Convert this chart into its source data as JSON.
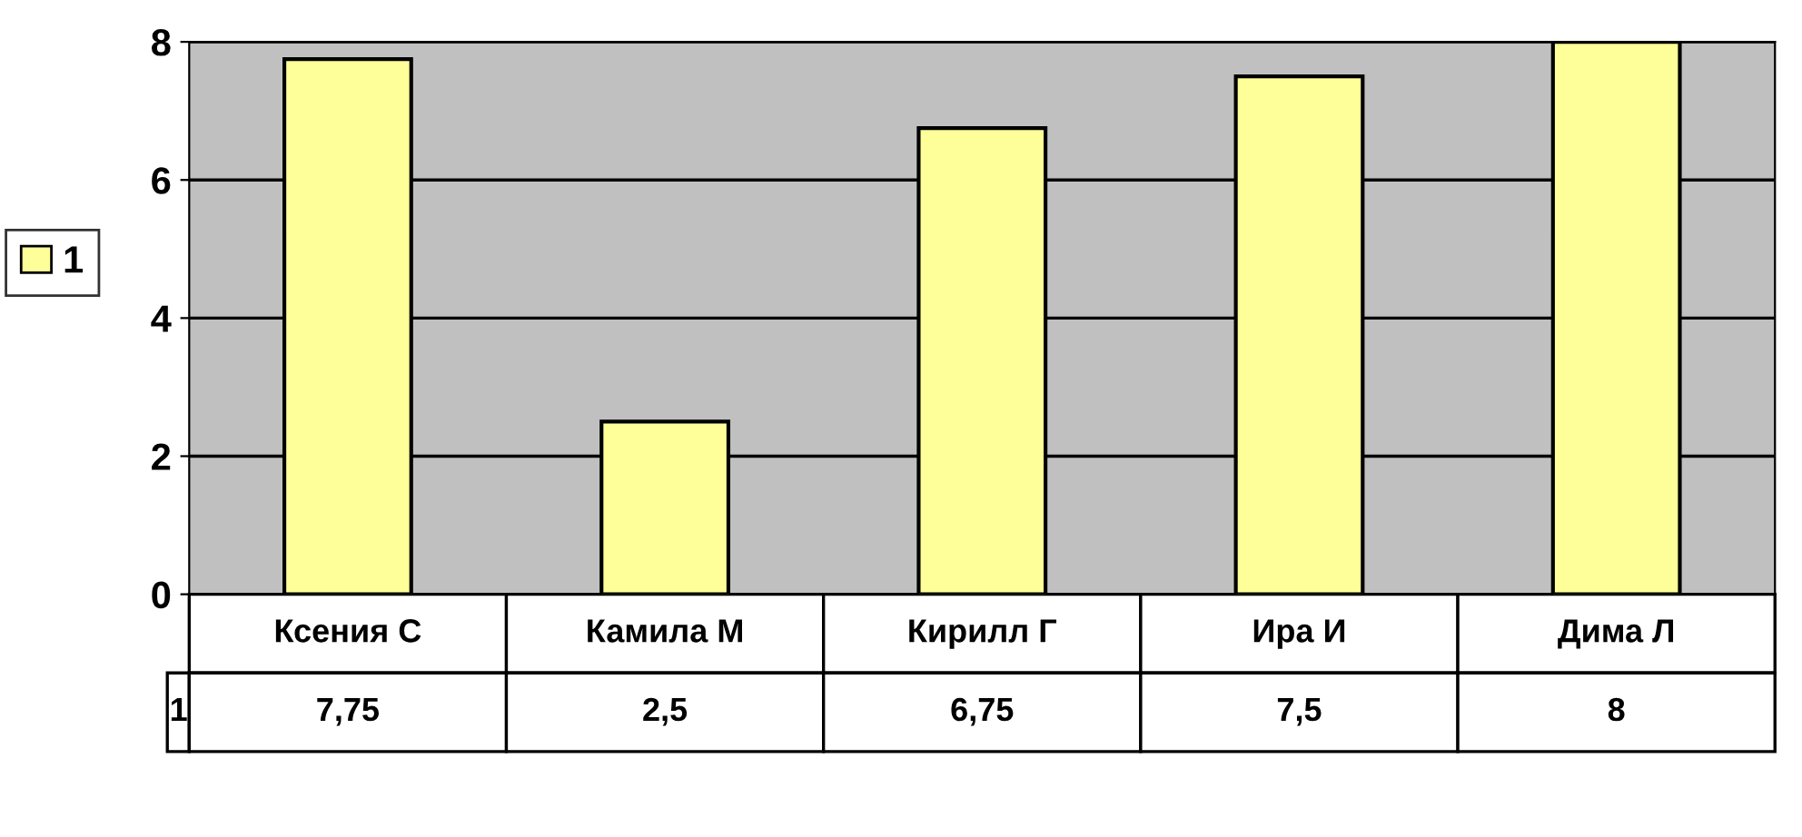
{
  "chart_data": {
    "type": "bar",
    "categories": [
      "Ксения С",
      "Камила М",
      "Кирилл Г",
      "Ира И",
      "Дима Л"
    ],
    "series": [
      {
        "name": "1",
        "color": "#ffff99",
        "values": [
          7.75,
          2.5,
          6.75,
          7.5,
          8
        ],
        "value_labels": [
          "7,75",
          "2,5",
          "6,75",
          "7,5",
          "8"
        ]
      }
    ],
    "ylim": [
      0,
      8
    ],
    "yticks": [
      0,
      2,
      4,
      6,
      8
    ],
    "grid": "y",
    "legend": "left"
  }
}
